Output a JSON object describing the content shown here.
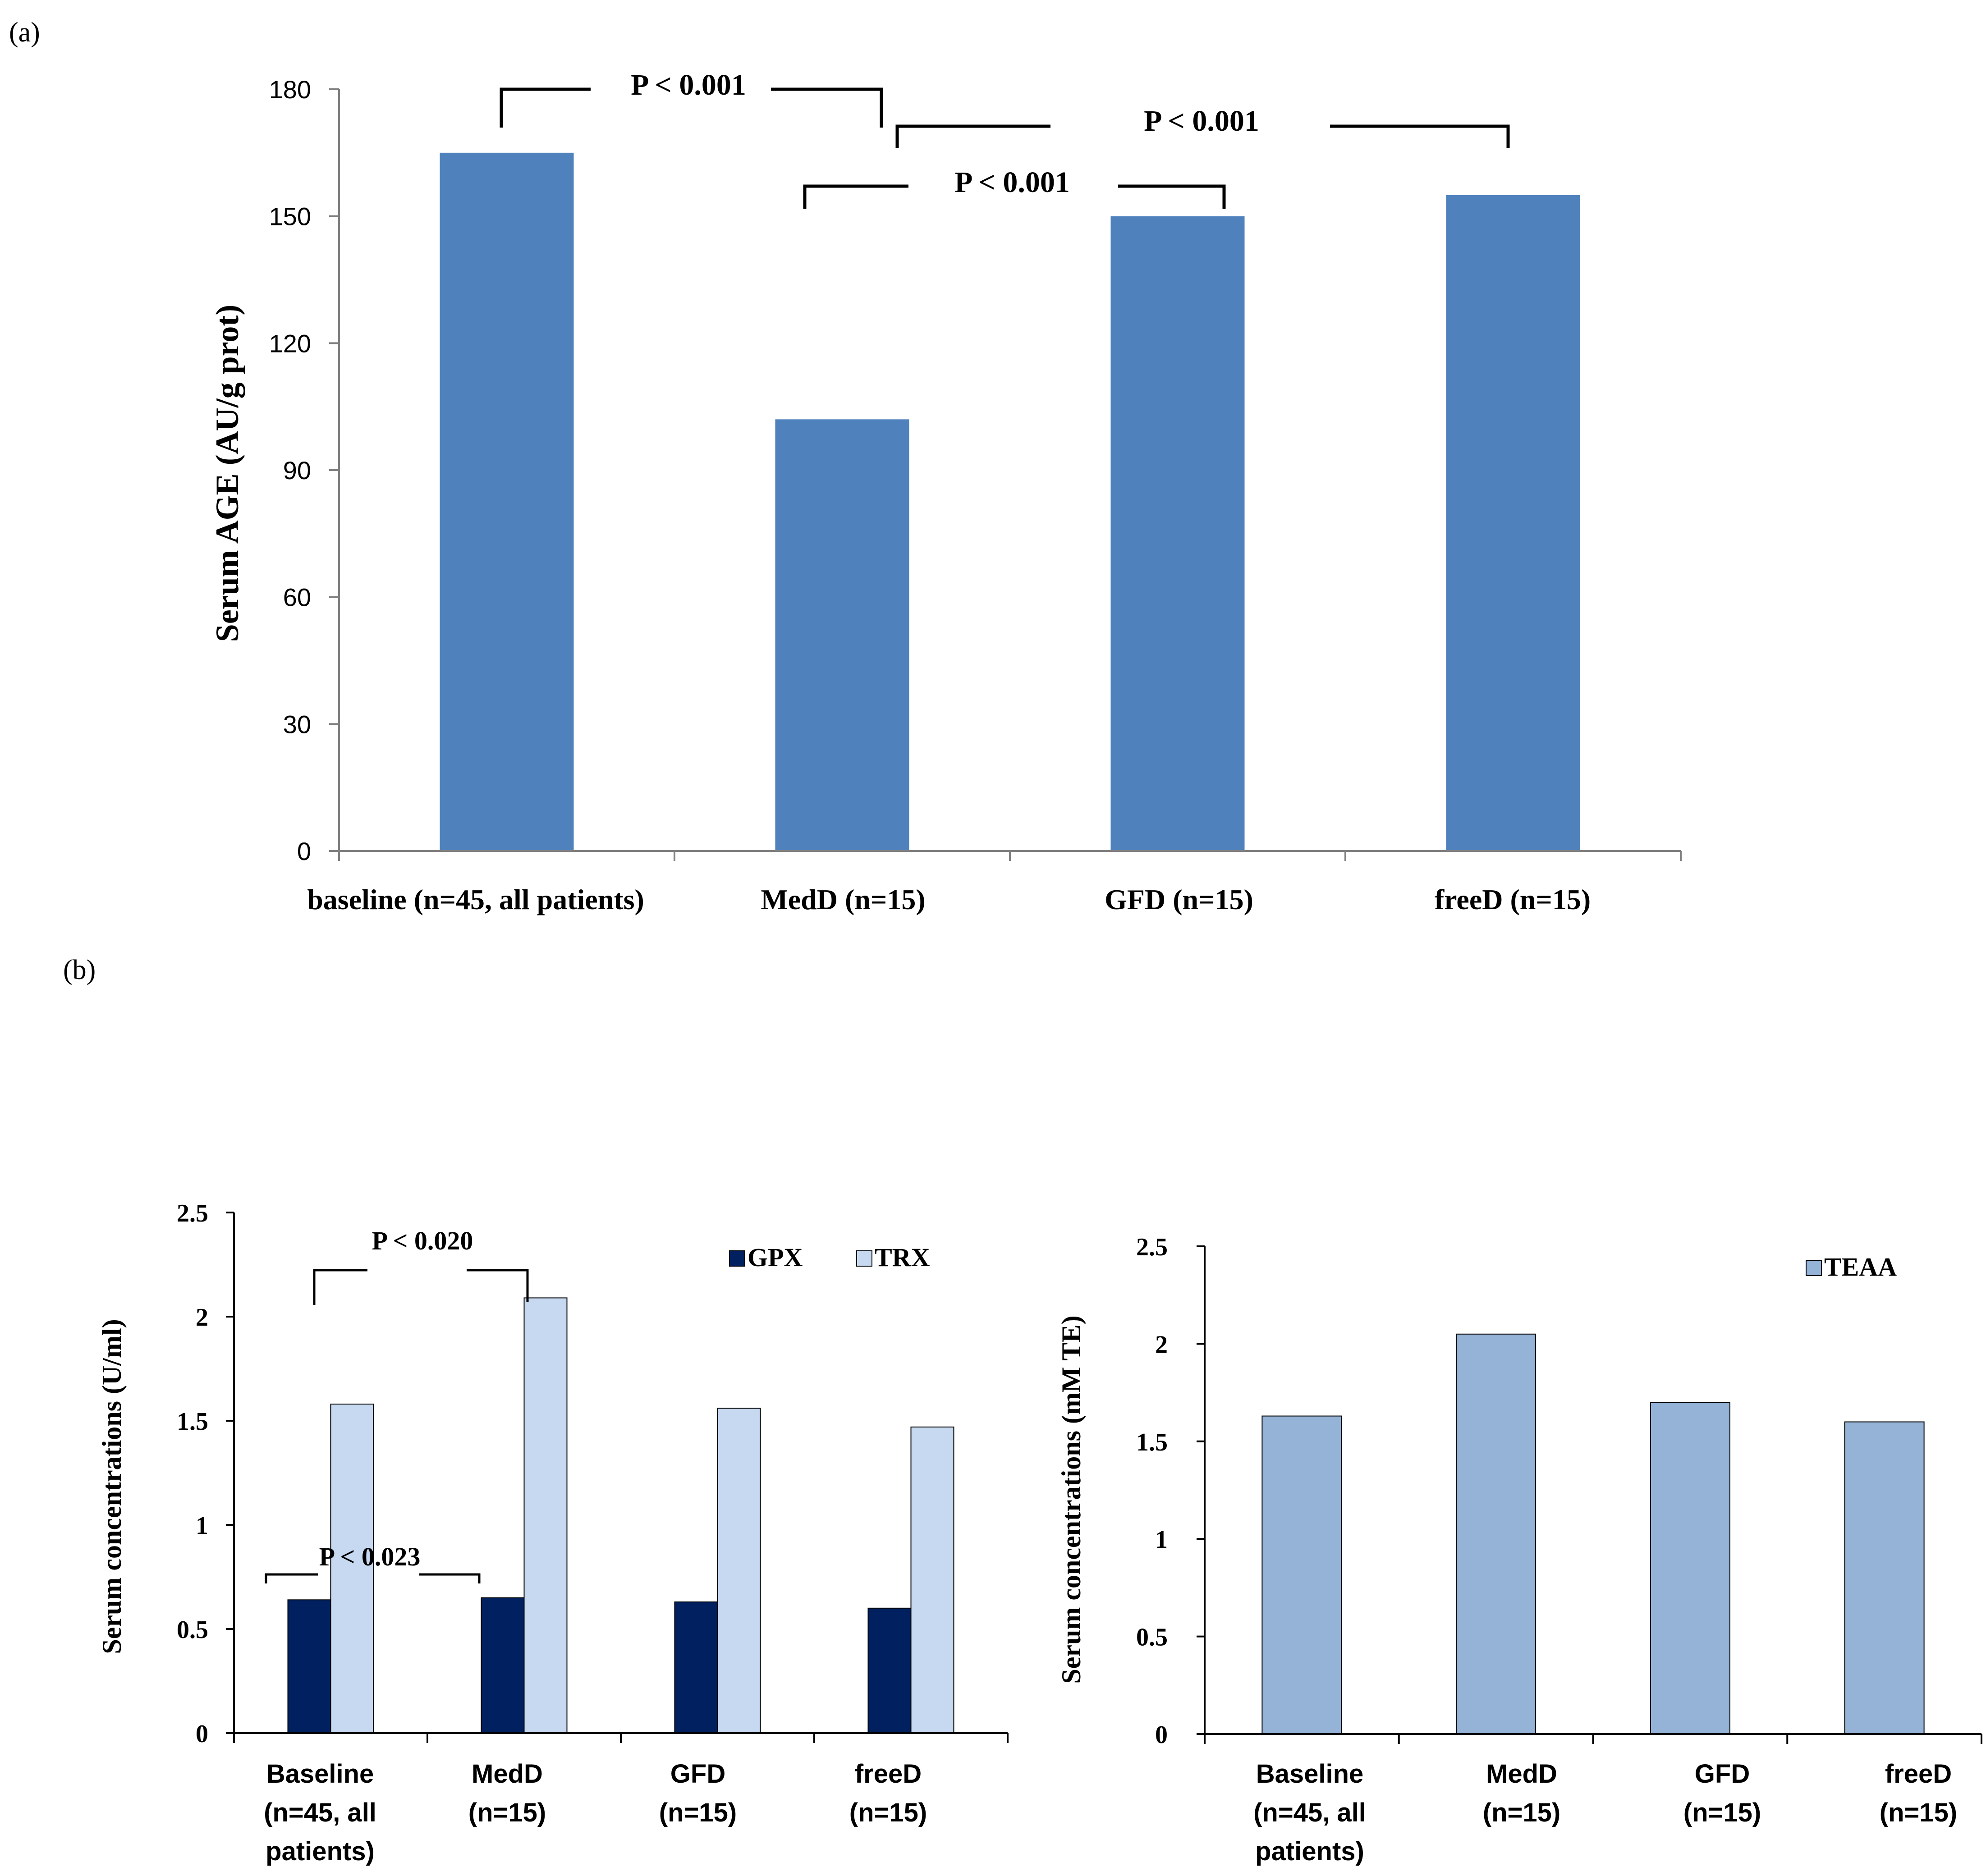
{
  "panel_labels": [
    "(a)",
    "(b)"
  ],
  "chart_data": [
    {
      "type": "bar",
      "id": "a",
      "title": "",
      "xlabel": "",
      "ylabel": "Serum AGE (AU/g prot)",
      "ylim": [
        0,
        180
      ],
      "yticks": [
        "0",
        "30",
        "60",
        "90",
        "120",
        "150",
        "180"
      ],
      "categories": [
        "baseline (n=45, all patients)",
        "MedD (n=15)",
        "GFD (n=15)",
        "freeD (n=15)"
      ],
      "series": [
        {
          "name": "Serum AGE",
          "values": [
            165,
            102,
            150,
            155
          ],
          "color": "#4f81bd"
        }
      ],
      "annotations": [
        "P < 0.001",
        "P < 0.001",
        "P < 0.001"
      ]
    },
    {
      "type": "bar",
      "id": "b-left",
      "title": "",
      "xlabel": "",
      "ylabel": "Serum concentrations  (U/ml)",
      "ylim": [
        0,
        2.5
      ],
      "yticks": [
        "0",
        "0.5",
        "1",
        "1.5",
        "2",
        "2.5"
      ],
      "categories": [
        [
          "Baseline",
          "(n=45, all",
          "patients)"
        ],
        [
          "MedD",
          "(n=15)"
        ],
        [
          "GFD",
          "(n=15)"
        ],
        [
          "freeD",
          "(n=15)"
        ]
      ],
      "legend_position": "top-right",
      "series": [
        {
          "name": "GPX",
          "values": [
            0.64,
            0.65,
            0.63,
            0.6
          ],
          "color": "#002060"
        },
        {
          "name": "TRX",
          "values": [
            1.58,
            2.09,
            1.56,
            1.47
          ],
          "color": "#c6d9f1"
        }
      ],
      "annotations": [
        "P < 0.020",
        "P < 0.023"
      ]
    },
    {
      "type": "bar",
      "id": "b-right",
      "title": "",
      "xlabel": "",
      "ylabel": "Serum concentrations (mM TE)",
      "ylim": [
        0,
        2.5
      ],
      "yticks": [
        "0",
        "0.5",
        "1",
        "1.5",
        "2",
        "2.5"
      ],
      "categories": [
        [
          "Baseline",
          "(n=45, all",
          "patients)"
        ],
        [
          "MedD",
          "(n=15)"
        ],
        [
          "GFD",
          "(n=15)"
        ],
        [
          "freeD",
          "(n=15)"
        ]
      ],
      "legend_position": "top-right",
      "series": [
        {
          "name": "TEAA",
          "values": [
            1.63,
            2.05,
            1.7,
            1.6
          ],
          "color": "#95b3d7"
        }
      ],
      "annotations": []
    }
  ]
}
